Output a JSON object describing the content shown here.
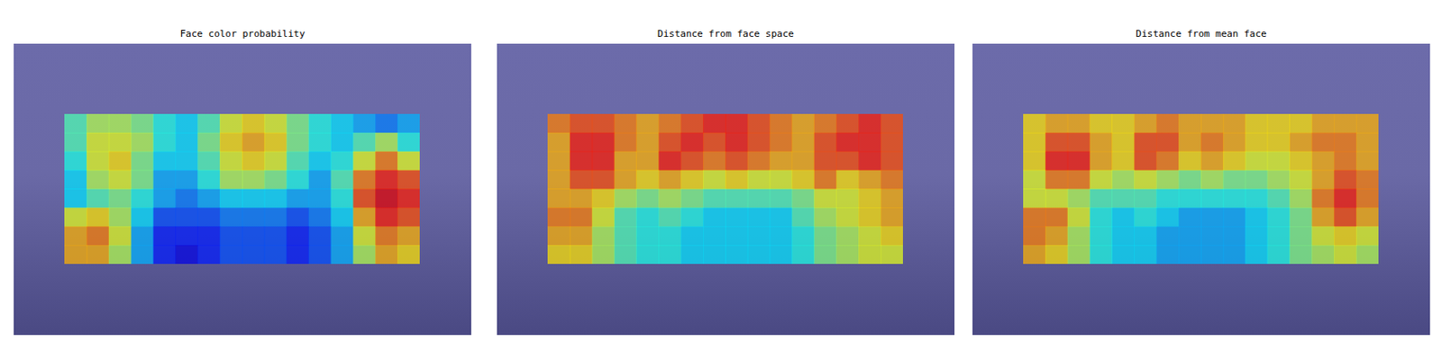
{
  "chart_data": [
    {
      "type": "heatmap",
      "title": "Face color probability",
      "tick_labels": false,
      "cells": [
        [
          0.45,
          0.55,
          0.55,
          0.5,
          0.4,
          0.35,
          0.45,
          0.6,
          0.65,
          0.6,
          0.5,
          0.4,
          0.35,
          0.3,
          0.25,
          0.3
        ],
        [
          0.45,
          0.6,
          0.6,
          0.55,
          0.4,
          0.35,
          0.5,
          0.65,
          0.7,
          0.65,
          0.5,
          0.4,
          0.35,
          0.45,
          0.55,
          0.4
        ],
        [
          0.4,
          0.6,
          0.65,
          0.5,
          0.35,
          0.35,
          0.45,
          0.6,
          0.65,
          0.6,
          0.45,
          0.35,
          0.4,
          0.6,
          0.75,
          0.6
        ],
        [
          0.35,
          0.55,
          0.6,
          0.5,
          0.3,
          0.3,
          0.4,
          0.55,
          0.55,
          0.5,
          0.4,
          0.3,
          0.45,
          0.75,
          0.85,
          0.8
        ],
        [
          0.35,
          0.45,
          0.5,
          0.4,
          0.3,
          0.25,
          0.3,
          0.35,
          0.35,
          0.35,
          0.3,
          0.3,
          0.4,
          0.8,
          0.9,
          0.85
        ],
        [
          0.6,
          0.65,
          0.55,
          0.35,
          0.2,
          0.2,
          0.2,
          0.25,
          0.25,
          0.25,
          0.2,
          0.25,
          0.35,
          0.7,
          0.85,
          0.8
        ],
        [
          0.7,
          0.75,
          0.6,
          0.3,
          0.15,
          0.15,
          0.15,
          0.2,
          0.2,
          0.2,
          0.15,
          0.2,
          0.3,
          0.6,
          0.75,
          0.7
        ],
        [
          0.7,
          0.7,
          0.55,
          0.3,
          0.15,
          0.1,
          0.15,
          0.2,
          0.2,
          0.2,
          0.15,
          0.2,
          0.3,
          0.55,
          0.7,
          0.65
        ]
      ]
    },
    {
      "type": "heatmap",
      "title": "Distance from face space",
      "tick_labels": false,
      "cells": [
        [
          0.75,
          0.8,
          0.8,
          0.75,
          0.7,
          0.75,
          0.8,
          0.85,
          0.85,
          0.8,
          0.75,
          0.7,
          0.75,
          0.8,
          0.85,
          0.8
        ],
        [
          0.7,
          0.85,
          0.85,
          0.75,
          0.7,
          0.8,
          0.85,
          0.8,
          0.85,
          0.8,
          0.75,
          0.7,
          0.8,
          0.85,
          0.85,
          0.8
        ],
        [
          0.7,
          0.85,
          0.85,
          0.7,
          0.7,
          0.85,
          0.8,
          0.75,
          0.8,
          0.75,
          0.7,
          0.7,
          0.8,
          0.8,
          0.85,
          0.8
        ],
        [
          0.7,
          0.8,
          0.8,
          0.7,
          0.65,
          0.7,
          0.65,
          0.6,
          0.65,
          0.6,
          0.6,
          0.65,
          0.75,
          0.65,
          0.7,
          0.75
        ],
        [
          0.7,
          0.7,
          0.65,
          0.55,
          0.5,
          0.55,
          0.5,
          0.45,
          0.45,
          0.45,
          0.45,
          0.5,
          0.6,
          0.6,
          0.65,
          0.7
        ],
        [
          0.75,
          0.75,
          0.6,
          0.45,
          0.4,
          0.45,
          0.4,
          0.35,
          0.35,
          0.35,
          0.35,
          0.45,
          0.55,
          0.6,
          0.65,
          0.7
        ],
        [
          0.7,
          0.7,
          0.55,
          0.45,
          0.4,
          0.4,
          0.35,
          0.35,
          0.35,
          0.35,
          0.35,
          0.4,
          0.5,
          0.55,
          0.6,
          0.65
        ],
        [
          0.65,
          0.65,
          0.55,
          0.45,
          0.4,
          0.4,
          0.35,
          0.35,
          0.35,
          0.35,
          0.35,
          0.4,
          0.5,
          0.55,
          0.6,
          0.6
        ]
      ]
    },
    {
      "type": "heatmap",
      "title": "Distance from mean face",
      "tick_labels": false,
      "cells": [
        [
          0.65,
          0.7,
          0.7,
          0.65,
          0.65,
          0.7,
          0.75,
          0.7,
          0.7,
          0.7,
          0.65,
          0.65,
          0.65,
          0.7,
          0.7,
          0.7
        ],
        [
          0.65,
          0.8,
          0.8,
          0.7,
          0.65,
          0.8,
          0.8,
          0.7,
          0.75,
          0.7,
          0.65,
          0.65,
          0.7,
          0.75,
          0.75,
          0.7
        ],
        [
          0.65,
          0.85,
          0.85,
          0.7,
          0.65,
          0.8,
          0.75,
          0.65,
          0.7,
          0.65,
          0.6,
          0.6,
          0.65,
          0.7,
          0.75,
          0.7
        ],
        [
          0.6,
          0.75,
          0.75,
          0.6,
          0.55,
          0.6,
          0.55,
          0.5,
          0.55,
          0.5,
          0.5,
          0.55,
          0.6,
          0.7,
          0.8,
          0.75
        ],
        [
          0.6,
          0.6,
          0.55,
          0.45,
          0.45,
          0.45,
          0.4,
          0.4,
          0.4,
          0.4,
          0.4,
          0.45,
          0.55,
          0.75,
          0.85,
          0.75
        ],
        [
          0.75,
          0.75,
          0.6,
          0.4,
          0.35,
          0.4,
          0.35,
          0.3,
          0.3,
          0.3,
          0.35,
          0.4,
          0.5,
          0.7,
          0.8,
          0.7
        ],
        [
          0.75,
          0.7,
          0.55,
          0.4,
          0.35,
          0.35,
          0.3,
          0.3,
          0.3,
          0.3,
          0.35,
          0.4,
          0.5,
          0.6,
          0.65,
          0.6
        ],
        [
          0.7,
          0.65,
          0.55,
          0.4,
          0.35,
          0.35,
          0.3,
          0.3,
          0.3,
          0.3,
          0.35,
          0.4,
          0.5,
          0.55,
          0.6,
          0.55
        ]
      ]
    }
  ]
}
